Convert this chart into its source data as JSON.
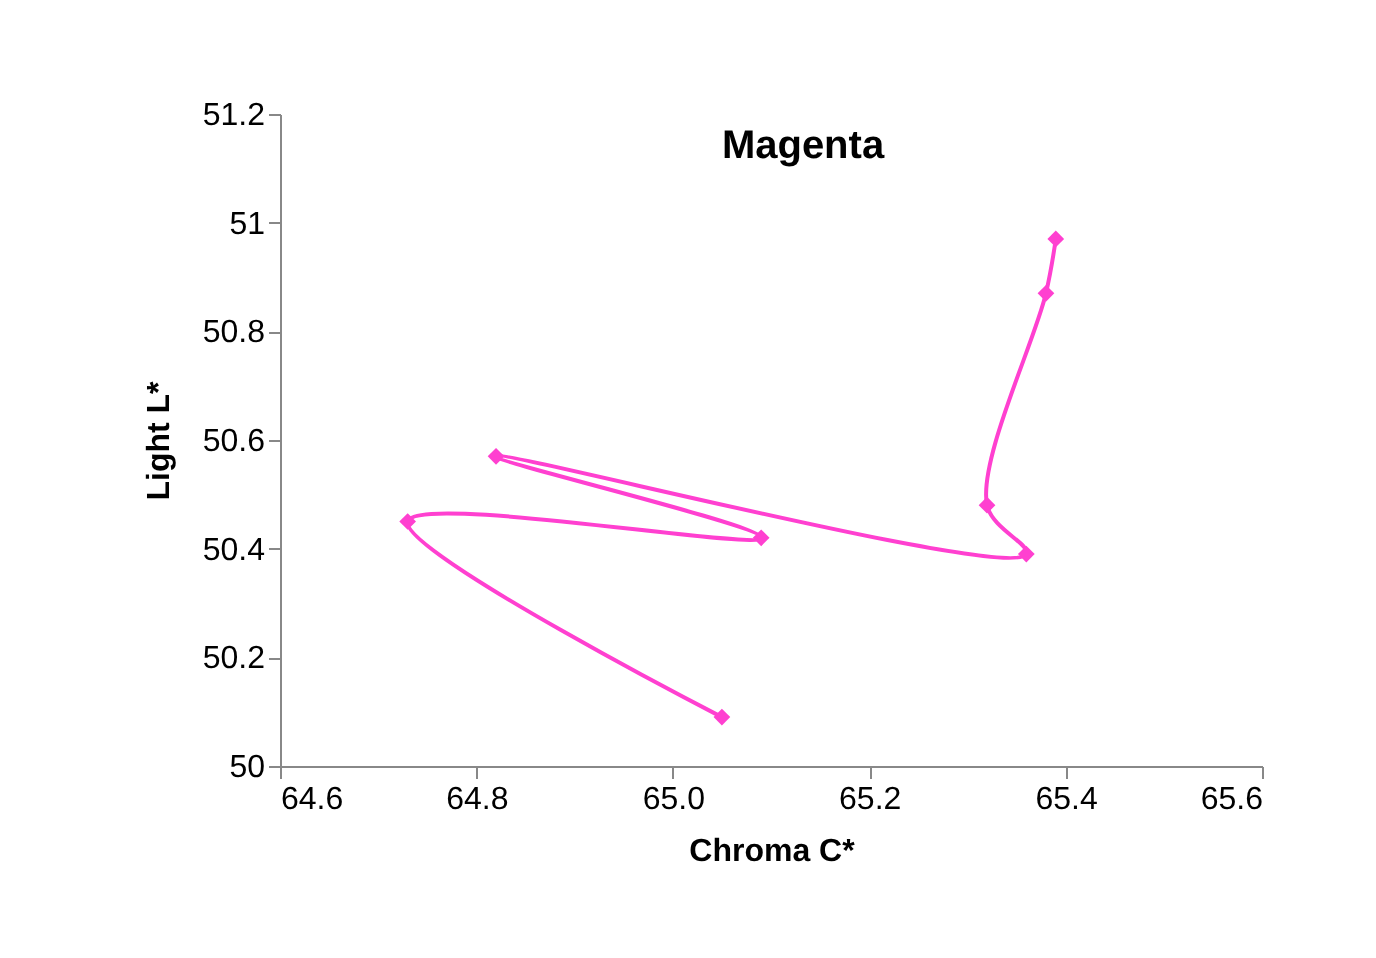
{
  "chart_data": {
    "type": "line",
    "title": "Magenta",
    "xlabel": "Chroma C*",
    "ylabel": "Light L*",
    "x": [
      65.05,
      64.73,
      65.09,
      64.82,
      65.36,
      65.32,
      65.38,
      65.39
    ],
    "series": [
      {
        "color": "#ff40d0",
        "values": [
          50.09,
          50.45,
          50.42,
          50.57,
          50.39,
          50.48,
          50.87,
          50.97
        ]
      }
    ],
    "xlim": [
      64.6,
      65.6
    ],
    "xticks": [
      {
        "value": 64.6,
        "label": "64.6"
      },
      {
        "value": 64.8,
        "label": "64.8"
      },
      {
        "value": 65,
        "label": "65.0"
      },
      {
        "value": 65.2,
        "label": "65.2"
      },
      {
        "value": 65.4,
        "label": "65.4"
      },
      {
        "value": 65.6,
        "label": "65.6"
      }
    ],
    "ylim": [
      50,
      51.2
    ],
    "yticks": [
      50,
      50.2,
      50.4,
      50.6,
      50.8,
      51,
      51.2
    ],
    "marker": "diamond",
    "line_style": "solid",
    "grid": false,
    "legend": false
  }
}
